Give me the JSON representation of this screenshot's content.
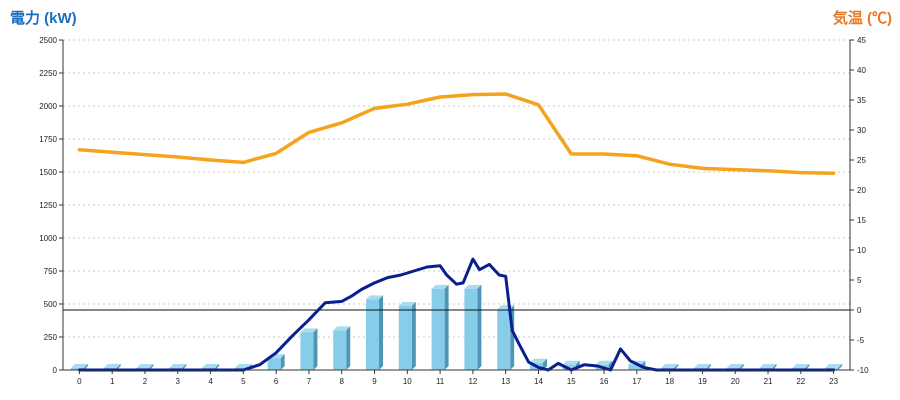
{
  "chart_data": {
    "type": "bar",
    "title_left": "電力 (kW)",
    "title_right": "気温 (℃)",
    "categories": [
      "0",
      "1",
      "2",
      "3",
      "4",
      "5",
      "6",
      "7",
      "8",
      "9",
      "10",
      "11",
      "12",
      "13",
      "14",
      "15",
      "16",
      "17",
      "18",
      "19",
      "20",
      "21",
      "22",
      "23"
    ],
    "y_left": {
      "min": 0,
      "max": 2500,
      "ticks": [
        "0",
        "250",
        "500",
        "750",
        "1000",
        "1250",
        "1500",
        "1750",
        "2000",
        "2250",
        "2500"
      ]
    },
    "y_right": {
      "min": -10,
      "max": 45,
      "ticks": [
        "-10",
        "-5",
        "0",
        "5",
        "10",
        "15",
        "20",
        "25",
        "30",
        "35",
        "40",
        "45"
      ]
    },
    "grid": true,
    "series": [
      {
        "type": "bar",
        "axis": "left",
        "color": "#87cdea",
        "values": [
          15,
          15,
          15,
          15,
          15,
          15,
          90,
          285,
          300,
          535,
          485,
          615,
          615,
          460,
          55,
          40,
          40,
          40,
          15,
          15,
          15,
          15,
          15,
          15
        ]
      },
      {
        "type": "line",
        "axis": "left",
        "color": "#0a1f8f",
        "x": [
          0,
          5,
          5.5,
          6,
          6.5,
          7,
          7.5,
          8,
          8.3,
          8.6,
          9,
          9.4,
          9.8,
          10.2,
          10.6,
          11,
          11.2,
          11.5,
          11.7,
          12,
          12.2,
          12.5,
          12.8,
          13,
          13.2,
          13.4,
          13.7,
          14,
          14.3,
          14.6,
          15,
          15.4,
          15.8,
          16.2,
          16.5,
          16.8,
          17.2,
          17.6,
          23
        ],
        "values": [
          0,
          0,
          40,
          130,
          260,
          380,
          510,
          520,
          560,
          610,
          660,
          700,
          720,
          750,
          780,
          790,
          720,
          650,
          660,
          840,
          760,
          800,
          720,
          710,
          300,
          200,
          60,
          20,
          0,
          50,
          0,
          40,
          30,
          0,
          160,
          70,
          20,
          0,
          0
        ]
      },
      {
        "type": "line",
        "axis": "right",
        "color": "#f5a21c",
        "values": [
          26.7,
          26.3,
          25.9,
          25.5,
          25,
          24.6,
          26.1,
          29.6,
          31.2,
          33.6,
          34.3,
          35.5,
          35.9,
          36,
          34.2,
          26,
          26,
          25.7,
          24.3,
          23.6,
          23.4,
          23.2,
          22.9,
          22.8
        ]
      }
    ],
    "reference_line": {
      "axis": "right",
      "value": 0
    }
  }
}
